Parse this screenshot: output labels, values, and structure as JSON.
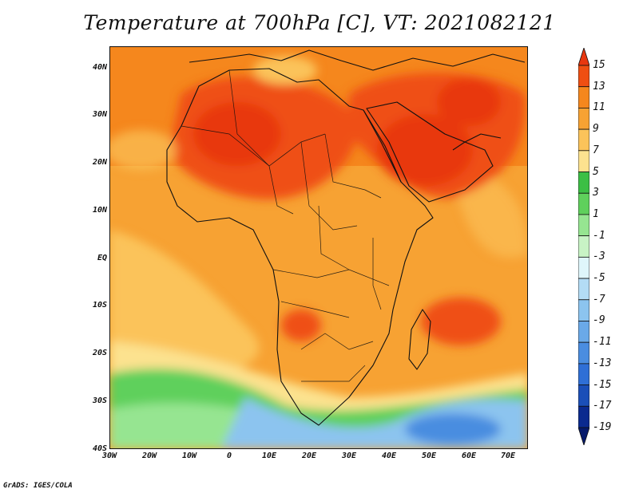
{
  "title": "Temperature at 700hPa [C], VT: 2021082121",
  "credit": "GrADS: IGES/COLA",
  "map": {
    "lat_ticks": [
      "40N",
      "30N",
      "20N",
      "10N",
      "EQ",
      "10S",
      "20S",
      "30S",
      "40S"
    ],
    "lon_ticks": [
      "30W",
      "20W",
      "10W",
      "0",
      "10E",
      "20E",
      "30E",
      "40E",
      "50E",
      "60E",
      "70E"
    ]
  },
  "colorbar": {
    "labels": [
      "15",
      "13",
      "11",
      "9",
      "7",
      "5",
      "3",
      "1",
      "-1",
      "-3",
      "-5",
      "-7",
      "-9",
      "-11",
      "-13",
      "-15",
      "-17",
      "-19"
    ],
    "colors": [
      "#e8370f",
      "#ef4f12",
      "#f5871d",
      "#f7a233",
      "#fbc35a",
      "#fce28f",
      "#3cbf45",
      "#5fd05c",
      "#96e591",
      "#c8f3c5",
      "#dff6fb",
      "#b3dcf5",
      "#8cc4ef",
      "#6aa9e8",
      "#4a8de0",
      "#2f6fd6",
      "#1b4fb8",
      "#0b2a8f",
      "#061a6b"
    ]
  }
}
